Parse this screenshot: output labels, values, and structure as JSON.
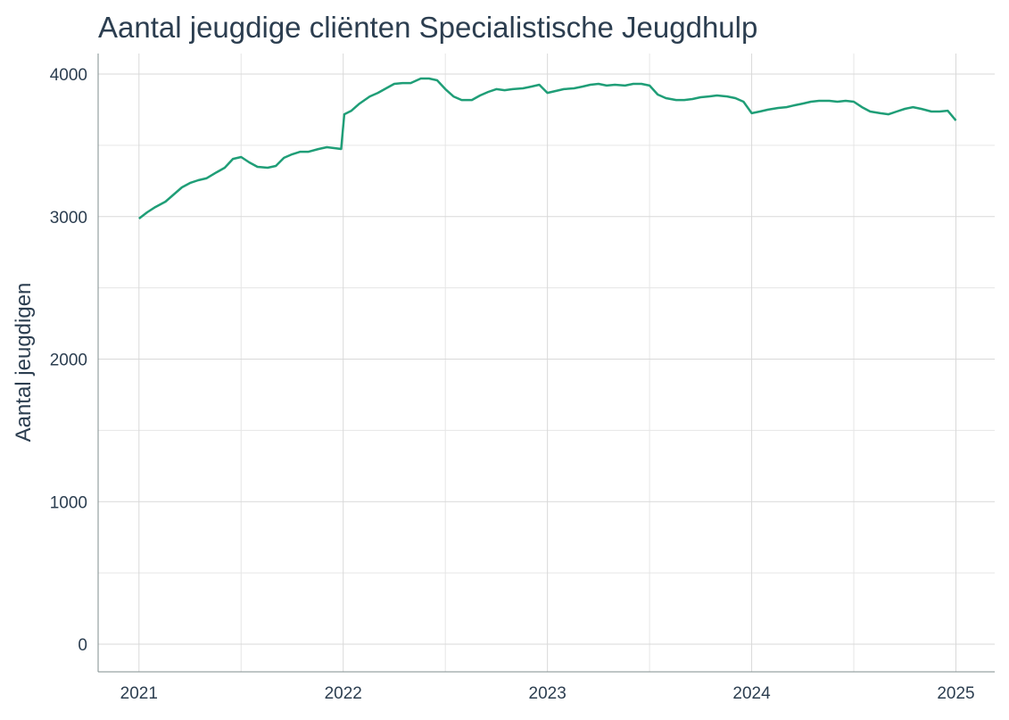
{
  "chart_data": {
    "type": "line",
    "title": "Aantal jeugdige cliënten Specialistische Jeugdhulp",
    "y_label": "Aantal jeugdigen",
    "x": [
      2021.0,
      2021.04,
      2021.08,
      2021.13,
      2021.17,
      2021.21,
      2021.25,
      2021.29,
      2021.33,
      2021.38,
      2021.42,
      2021.46,
      2021.5,
      2021.54,
      2021.58,
      2021.63,
      2021.67,
      2021.71,
      2021.75,
      2021.79,
      2021.83,
      2021.88,
      2021.92,
      2021.96,
      2021.99,
      2022.005,
      2022.04,
      2022.08,
      2022.13,
      2022.17,
      2022.21,
      2022.25,
      2022.29,
      2022.33,
      2022.38,
      2022.42,
      2022.46,
      2022.5,
      2022.54,
      2022.58,
      2022.63,
      2022.67,
      2022.71,
      2022.75,
      2022.79,
      2022.83,
      2022.88,
      2022.92,
      2022.96,
      2023.0,
      2023.04,
      2023.08,
      2023.13,
      2023.17,
      2023.21,
      2023.25,
      2023.29,
      2023.33,
      2023.38,
      2023.42,
      2023.46,
      2023.5,
      2023.54,
      2023.58,
      2023.63,
      2023.67,
      2023.71,
      2023.75,
      2023.79,
      2023.83,
      2023.88,
      2023.92,
      2023.96,
      2024.0,
      2024.04,
      2024.08,
      2024.13,
      2024.17,
      2024.21,
      2024.25,
      2024.29,
      2024.33,
      2024.38,
      2024.42,
      2024.46,
      2024.5,
      2024.54,
      2024.58,
      2024.63,
      2024.67,
      2024.71,
      2024.75,
      2024.79,
      2024.83,
      2024.88,
      2024.92,
      2024.96,
      2025.0
    ],
    "series": [
      {
        "name": "Aantal jeugdigen",
        "color": "#1f9e77",
        "values": [
          2986,
          3030,
          3067,
          3105,
          3155,
          3205,
          3236,
          3255,
          3268,
          3311,
          3343,
          3405,
          3418,
          3380,
          3349,
          3343,
          3355,
          3412,
          3437,
          3455,
          3455,
          3474,
          3487,
          3480,
          3474,
          3718,
          3743,
          3793,
          3843,
          3868,
          3900,
          3931,
          3937,
          3937,
          3969,
          3969,
          3956,
          3894,
          3843,
          3818,
          3818,
          3850,
          3875,
          3894,
          3887,
          3894,
          3900,
          3912,
          3925,
          3868,
          3881,
          3894,
          3900,
          3912,
          3925,
          3931,
          3919,
          3925,
          3919,
          3931,
          3931,
          3919,
          3856,
          3831,
          3818,
          3818,
          3825,
          3837,
          3843,
          3850,
          3843,
          3831,
          3806,
          3725,
          3737,
          3750,
          3762,
          3768,
          3781,
          3793,
          3806,
          3812,
          3812,
          3806,
          3812,
          3806,
          3768,
          3737,
          3725,
          3718,
          3737,
          3756,
          3768,
          3756,
          3737,
          3737,
          3743,
          3674
        ]
      }
    ],
    "xlim": [
      2020.8,
      2025.19
    ],
    "xticks": [
      2021,
      2022,
      2023,
      2024,
      2025
    ],
    "ylim": [
      -194,
      4144
    ],
    "yticks": [
      0,
      1000,
      2000,
      3000,
      4000
    ],
    "grid": true
  }
}
